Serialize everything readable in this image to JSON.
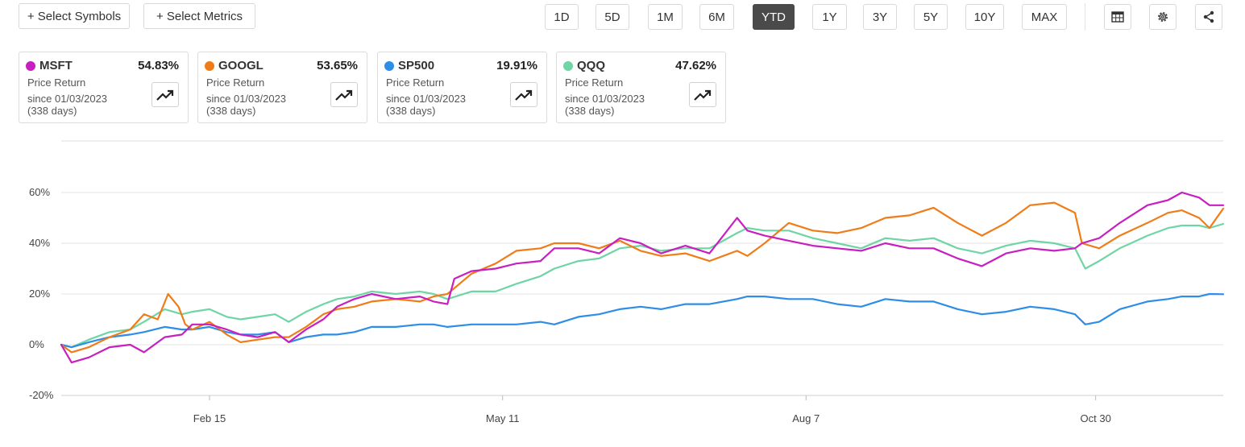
{
  "toolbar": {
    "select_symbols": "+ Select Symbols",
    "select_metrics": "+ Select Metrics",
    "ranges": [
      "1D",
      "5D",
      "1M",
      "6M",
      "YTD",
      "1Y",
      "3Y",
      "5Y",
      "10Y",
      "MAX"
    ],
    "active_range": "YTD",
    "tools": [
      "table-icon",
      "gear-icon",
      "share-icon"
    ]
  },
  "cards": [
    {
      "symbol": "MSFT",
      "value": "54.83%",
      "metric": "Price Return",
      "since": "since 01/03/2023",
      "days": "(338 days)",
      "color": "#c71fc0"
    },
    {
      "symbol": "GOOGL",
      "value": "53.65%",
      "metric": "Price Return",
      "since": "since 01/03/2023",
      "days": "(338 days)",
      "color": "#f07c18"
    },
    {
      "symbol": "SP500",
      "value": "19.91%",
      "metric": "Price Return",
      "since": "since 01/03/2023",
      "days": "(338 days)",
      "color": "#2e8de6"
    },
    {
      "symbol": "QQQ",
      "value": "47.62%",
      "metric": "Price Return",
      "since": "since 01/03/2023",
      "days": "(338 days)",
      "color": "#6fd5a4"
    }
  ],
  "chart_data": {
    "type": "line",
    "x_type": "date",
    "x_range": [
      "2023-01-03",
      "2023-12-06"
    ],
    "ylim": [
      -20,
      80
    ],
    "yticks": [
      -20,
      0,
      20,
      40,
      60
    ],
    "ytick_labels": [
      "-20%",
      "0%",
      "20%",
      "40%",
      "60%"
    ],
    "xticks": [
      {
        "date": "2023-02-15",
        "label": "Feb 15"
      },
      {
        "date": "2023-05-11",
        "label": "May 11"
      },
      {
        "date": "2023-08-07",
        "label": "Aug 7"
      },
      {
        "date": "2023-10-30",
        "label": "Oct 30"
      }
    ],
    "grid": true,
    "series": [
      {
        "name": "MSFT",
        "color": "#c71fc0",
        "points": [
          [
            "2023-01-03",
            0
          ],
          [
            "2023-01-06",
            -7
          ],
          [
            "2023-01-11",
            -5
          ],
          [
            "2023-01-17",
            -1
          ],
          [
            "2023-01-23",
            0
          ],
          [
            "2023-01-27",
            -3
          ],
          [
            "2023-02-02",
            3
          ],
          [
            "2023-02-07",
            4
          ],
          [
            "2023-02-10",
            8
          ],
          [
            "2023-02-15",
            8
          ],
          [
            "2023-02-20",
            6
          ],
          [
            "2023-02-24",
            4
          ],
          [
            "2023-03-01",
            3
          ],
          [
            "2023-03-06",
            5
          ],
          [
            "2023-03-10",
            1
          ],
          [
            "2023-03-15",
            6
          ],
          [
            "2023-03-20",
            10
          ],
          [
            "2023-03-24",
            15
          ],
          [
            "2023-03-29",
            18
          ],
          [
            "2023-04-03",
            20
          ],
          [
            "2023-04-10",
            18
          ],
          [
            "2023-04-17",
            19
          ],
          [
            "2023-04-21",
            17
          ],
          [
            "2023-04-25",
            16
          ],
          [
            "2023-04-27",
            26
          ],
          [
            "2023-05-02",
            29
          ],
          [
            "2023-05-09",
            30
          ],
          [
            "2023-05-15",
            32
          ],
          [
            "2023-05-22",
            33
          ],
          [
            "2023-05-26",
            38
          ],
          [
            "2023-06-02",
            38
          ],
          [
            "2023-06-08",
            36
          ],
          [
            "2023-06-14",
            42
          ],
          [
            "2023-06-20",
            40
          ],
          [
            "2023-06-26",
            36
          ],
          [
            "2023-07-03",
            39
          ],
          [
            "2023-07-10",
            36
          ],
          [
            "2023-07-18",
            50
          ],
          [
            "2023-07-21",
            45
          ],
          [
            "2023-07-26",
            43
          ],
          [
            "2023-08-02",
            41
          ],
          [
            "2023-08-09",
            39
          ],
          [
            "2023-08-16",
            38
          ],
          [
            "2023-08-23",
            37
          ],
          [
            "2023-08-30",
            40
          ],
          [
            "2023-09-06",
            38
          ],
          [
            "2023-09-13",
            38
          ],
          [
            "2023-09-20",
            34
          ],
          [
            "2023-09-27",
            31
          ],
          [
            "2023-10-04",
            36
          ],
          [
            "2023-10-11",
            38
          ],
          [
            "2023-10-18",
            37
          ],
          [
            "2023-10-24",
            38
          ],
          [
            "2023-10-26",
            40
          ],
          [
            "2023-10-31",
            42
          ],
          [
            "2023-11-06",
            48
          ],
          [
            "2023-11-14",
            55
          ],
          [
            "2023-11-20",
            57
          ],
          [
            "2023-11-24",
            60
          ],
          [
            "2023-11-29",
            58
          ],
          [
            "2023-12-02",
            55
          ],
          [
            "2023-12-06",
            55
          ]
        ]
      },
      {
        "name": "GOOGL",
        "color": "#f07c18",
        "points": [
          [
            "2023-01-03",
            0
          ],
          [
            "2023-01-06",
            -3
          ],
          [
            "2023-01-11",
            -1
          ],
          [
            "2023-01-17",
            3
          ],
          [
            "2023-01-23",
            6
          ],
          [
            "2023-01-27",
            12
          ],
          [
            "2023-01-31",
            10
          ],
          [
            "2023-02-03",
            20
          ],
          [
            "2023-02-06",
            15
          ],
          [
            "2023-02-08",
            8
          ],
          [
            "2023-02-10",
            6
          ],
          [
            "2023-02-15",
            9
          ],
          [
            "2023-02-20",
            4
          ],
          [
            "2023-02-24",
            1
          ],
          [
            "2023-03-01",
            2
          ],
          [
            "2023-03-06",
            3
          ],
          [
            "2023-03-10",
            3
          ],
          [
            "2023-03-15",
            7
          ],
          [
            "2023-03-20",
            12
          ],
          [
            "2023-03-24",
            14
          ],
          [
            "2023-03-29",
            15
          ],
          [
            "2023-04-03",
            17
          ],
          [
            "2023-04-10",
            18
          ],
          [
            "2023-04-17",
            17
          ],
          [
            "2023-04-21",
            19
          ],
          [
            "2023-04-25",
            20
          ],
          [
            "2023-05-02",
            28
          ],
          [
            "2023-05-09",
            32
          ],
          [
            "2023-05-15",
            37
          ],
          [
            "2023-05-22",
            38
          ],
          [
            "2023-05-26",
            40
          ],
          [
            "2023-06-02",
            40
          ],
          [
            "2023-06-08",
            38
          ],
          [
            "2023-06-14",
            41
          ],
          [
            "2023-06-20",
            37
          ],
          [
            "2023-06-26",
            35
          ],
          [
            "2023-07-03",
            36
          ],
          [
            "2023-07-10",
            33
          ],
          [
            "2023-07-18",
            37
          ],
          [
            "2023-07-21",
            35
          ],
          [
            "2023-07-26",
            40
          ],
          [
            "2023-08-02",
            48
          ],
          [
            "2023-08-09",
            45
          ],
          [
            "2023-08-16",
            44
          ],
          [
            "2023-08-23",
            46
          ],
          [
            "2023-08-30",
            50
          ],
          [
            "2023-09-06",
            51
          ],
          [
            "2023-09-13",
            54
          ],
          [
            "2023-09-20",
            48
          ],
          [
            "2023-09-27",
            43
          ],
          [
            "2023-10-04",
            48
          ],
          [
            "2023-10-11",
            55
          ],
          [
            "2023-10-18",
            56
          ],
          [
            "2023-10-24",
            52
          ],
          [
            "2023-10-26",
            40
          ],
          [
            "2023-10-31",
            38
          ],
          [
            "2023-11-06",
            43
          ],
          [
            "2023-11-14",
            48
          ],
          [
            "2023-11-20",
            52
          ],
          [
            "2023-11-24",
            53
          ],
          [
            "2023-11-29",
            50
          ],
          [
            "2023-12-02",
            46
          ],
          [
            "2023-12-06",
            53.65
          ]
        ]
      },
      {
        "name": "SP500",
        "color": "#2e8de6",
        "points": [
          [
            "2023-01-03",
            0
          ],
          [
            "2023-01-06",
            -1
          ],
          [
            "2023-01-11",
            1
          ],
          [
            "2023-01-17",
            3
          ],
          [
            "2023-01-23",
            4
          ],
          [
            "2023-01-27",
            5
          ],
          [
            "2023-02-02",
            7
          ],
          [
            "2023-02-07",
            6
          ],
          [
            "2023-02-10",
            6
          ],
          [
            "2023-02-15",
            7
          ],
          [
            "2023-02-20",
            5
          ],
          [
            "2023-02-24",
            4
          ],
          [
            "2023-03-01",
            4
          ],
          [
            "2023-03-06",
            5
          ],
          [
            "2023-03-10",
            1
          ],
          [
            "2023-03-15",
            3
          ],
          [
            "2023-03-20",
            4
          ],
          [
            "2023-03-24",
            4
          ],
          [
            "2023-03-29",
            5
          ],
          [
            "2023-04-03",
            7
          ],
          [
            "2023-04-10",
            7
          ],
          [
            "2023-04-17",
            8
          ],
          [
            "2023-04-21",
            8
          ],
          [
            "2023-04-25",
            7
          ],
          [
            "2023-05-02",
            8
          ],
          [
            "2023-05-09",
            8
          ],
          [
            "2023-05-15",
            8
          ],
          [
            "2023-05-22",
            9
          ],
          [
            "2023-05-26",
            8
          ],
          [
            "2023-06-02",
            11
          ],
          [
            "2023-06-08",
            12
          ],
          [
            "2023-06-14",
            14
          ],
          [
            "2023-06-20",
            15
          ],
          [
            "2023-06-26",
            14
          ],
          [
            "2023-07-03",
            16
          ],
          [
            "2023-07-10",
            16
          ],
          [
            "2023-07-18",
            18
          ],
          [
            "2023-07-21",
            19
          ],
          [
            "2023-07-26",
            19
          ],
          [
            "2023-08-02",
            18
          ],
          [
            "2023-08-09",
            18
          ],
          [
            "2023-08-16",
            16
          ],
          [
            "2023-08-23",
            15
          ],
          [
            "2023-08-30",
            18
          ],
          [
            "2023-09-06",
            17
          ],
          [
            "2023-09-13",
            17
          ],
          [
            "2023-09-20",
            14
          ],
          [
            "2023-09-27",
            12
          ],
          [
            "2023-10-04",
            13
          ],
          [
            "2023-10-11",
            15
          ],
          [
            "2023-10-18",
            14
          ],
          [
            "2023-10-24",
            12
          ],
          [
            "2023-10-27",
            8
          ],
          [
            "2023-10-31",
            9
          ],
          [
            "2023-11-06",
            14
          ],
          [
            "2023-11-14",
            17
          ],
          [
            "2023-11-20",
            18
          ],
          [
            "2023-11-24",
            19
          ],
          [
            "2023-11-29",
            19
          ],
          [
            "2023-12-02",
            20
          ],
          [
            "2023-12-06",
            19.91
          ]
        ]
      },
      {
        "name": "QQQ",
        "color": "#6fd5a4",
        "points": [
          [
            "2023-01-03",
            0
          ],
          [
            "2023-01-06",
            -1
          ],
          [
            "2023-01-11",
            2
          ],
          [
            "2023-01-17",
            5
          ],
          [
            "2023-01-23",
            6
          ],
          [
            "2023-01-27",
            9
          ],
          [
            "2023-02-02",
            14
          ],
          [
            "2023-02-07",
            12
          ],
          [
            "2023-02-10",
            13
          ],
          [
            "2023-02-15",
            14
          ],
          [
            "2023-02-20",
            11
          ],
          [
            "2023-02-24",
            10
          ],
          [
            "2023-03-01",
            11
          ],
          [
            "2023-03-06",
            12
          ],
          [
            "2023-03-10",
            9
          ],
          [
            "2023-03-15",
            13
          ],
          [
            "2023-03-20",
            16
          ],
          [
            "2023-03-24",
            18
          ],
          [
            "2023-03-29",
            19
          ],
          [
            "2023-04-03",
            21
          ],
          [
            "2023-04-10",
            20
          ],
          [
            "2023-04-17",
            21
          ],
          [
            "2023-04-21",
            20
          ],
          [
            "2023-04-25",
            18
          ],
          [
            "2023-05-02",
            21
          ],
          [
            "2023-05-09",
            21
          ],
          [
            "2023-05-15",
            24
          ],
          [
            "2023-05-22",
            27
          ],
          [
            "2023-05-26",
            30
          ],
          [
            "2023-06-02",
            33
          ],
          [
            "2023-06-08",
            34
          ],
          [
            "2023-06-14",
            38
          ],
          [
            "2023-06-20",
            39
          ],
          [
            "2023-06-26",
            37
          ],
          [
            "2023-07-03",
            38
          ],
          [
            "2023-07-10",
            38
          ],
          [
            "2023-07-18",
            44
          ],
          [
            "2023-07-21",
            46
          ],
          [
            "2023-07-26",
            45
          ],
          [
            "2023-08-02",
            45
          ],
          [
            "2023-08-09",
            42
          ],
          [
            "2023-08-16",
            40
          ],
          [
            "2023-08-23",
            38
          ],
          [
            "2023-08-30",
            42
          ],
          [
            "2023-09-06",
            41
          ],
          [
            "2023-09-13",
            42
          ],
          [
            "2023-09-20",
            38
          ],
          [
            "2023-09-27",
            36
          ],
          [
            "2023-10-04",
            39
          ],
          [
            "2023-10-11",
            41
          ],
          [
            "2023-10-18",
            40
          ],
          [
            "2023-10-24",
            38
          ],
          [
            "2023-10-27",
            30
          ],
          [
            "2023-10-31",
            33
          ],
          [
            "2023-11-06",
            38
          ],
          [
            "2023-11-14",
            43
          ],
          [
            "2023-11-20",
            46
          ],
          [
            "2023-11-24",
            47
          ],
          [
            "2023-11-29",
            47
          ],
          [
            "2023-12-02",
            46
          ],
          [
            "2023-12-06",
            47.62
          ]
        ]
      }
    ]
  }
}
